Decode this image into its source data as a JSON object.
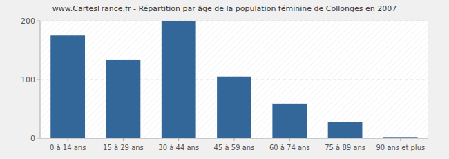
{
  "chart_data": {
    "type": "bar",
    "title": "www.CartesFrance.fr - Répartition par âge de la population féminine de Collonges en 2007",
    "categories": [
      "0 à 14 ans",
      "15 à 29 ans",
      "30 à 44 ans",
      "45 à 59 ans",
      "60 à 74 ans",
      "75 à 89 ans",
      "90 ans et plus"
    ],
    "values": [
      175,
      133,
      200,
      105,
      59,
      28,
      2
    ],
    "color": "#336699",
    "ylim": [
      0,
      200
    ],
    "yticks": [
      0,
      100,
      200
    ],
    "grid": true
  }
}
